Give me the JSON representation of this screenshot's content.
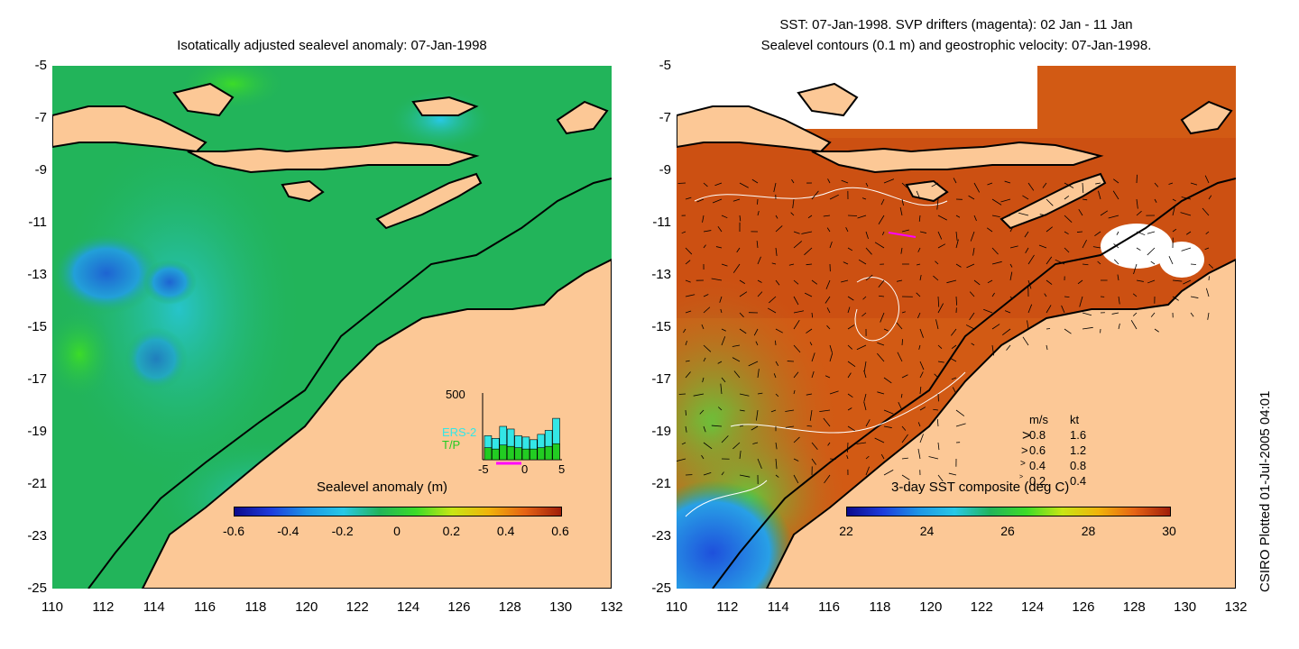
{
  "left_panel": {
    "title": "Isotatically adjusted sealevel anomaly: 07-Jan-1998",
    "colorbar_label": "Sealevel anomaly (m)",
    "colorbar_ticks": [
      "-0.6",
      "-0.4",
      "-0.2",
      "0",
      "0.2",
      "0.4",
      "0.6"
    ],
    "inset": {
      "ymax_label": "500",
      "series": [
        "ERS-2",
        "T/P"
      ],
      "series_colors": [
        "#33e6e6",
        "#22cc22"
      ],
      "x_ticks": [
        "-5",
        "0",
        "5"
      ],
      "ers2_counts": [
        180,
        160,
        250,
        230,
        180,
        170,
        150,
        190,
        220,
        310
      ],
      "tp_counts": [
        90,
        80,
        110,
        100,
        90,
        80,
        80,
        90,
        100,
        120
      ]
    }
  },
  "right_panel": {
    "title_line1": "SST: 07-Jan-1998. SVP drifters (magenta): 02 Jan - 11 Jan",
    "title_line2": "Sealevel contours (0.1 m) and geostrophic velocity: 07-Jan-1998.",
    "colorbar_label": "3-day SST composite (deg C)",
    "colorbar_ticks": [
      "22",
      "24",
      "26",
      "28",
      "30"
    ],
    "legend": {
      "header_ms": "m/s",
      "header_kt": "kt",
      "rows": [
        {
          "ms": "0.8",
          "kt": "1.6"
        },
        {
          "ms": "0.6",
          "kt": "1.2"
        },
        {
          "ms": "0.4",
          "kt": "0.8"
        },
        {
          "ms": "0.2",
          "kt": "0.4"
        }
      ]
    }
  },
  "axes": {
    "y_ticks": [
      "-5",
      "-7",
      "-9",
      "-11",
      "-13",
      "-15",
      "-17",
      "-19",
      "-21",
      "-23",
      "-25"
    ],
    "x_ticks": [
      "110",
      "112",
      "114",
      "116",
      "118",
      "120",
      "122",
      "124",
      "126",
      "128",
      "130",
      "132"
    ]
  },
  "credit": "CSIRO Plotted 01-Jul-2005 04:01",
  "colors": {
    "land": "#fcc896",
    "ocean_anomaly": "#22b45a",
    "sst_warm": "#c84614",
    "coastline": "#000000"
  }
}
